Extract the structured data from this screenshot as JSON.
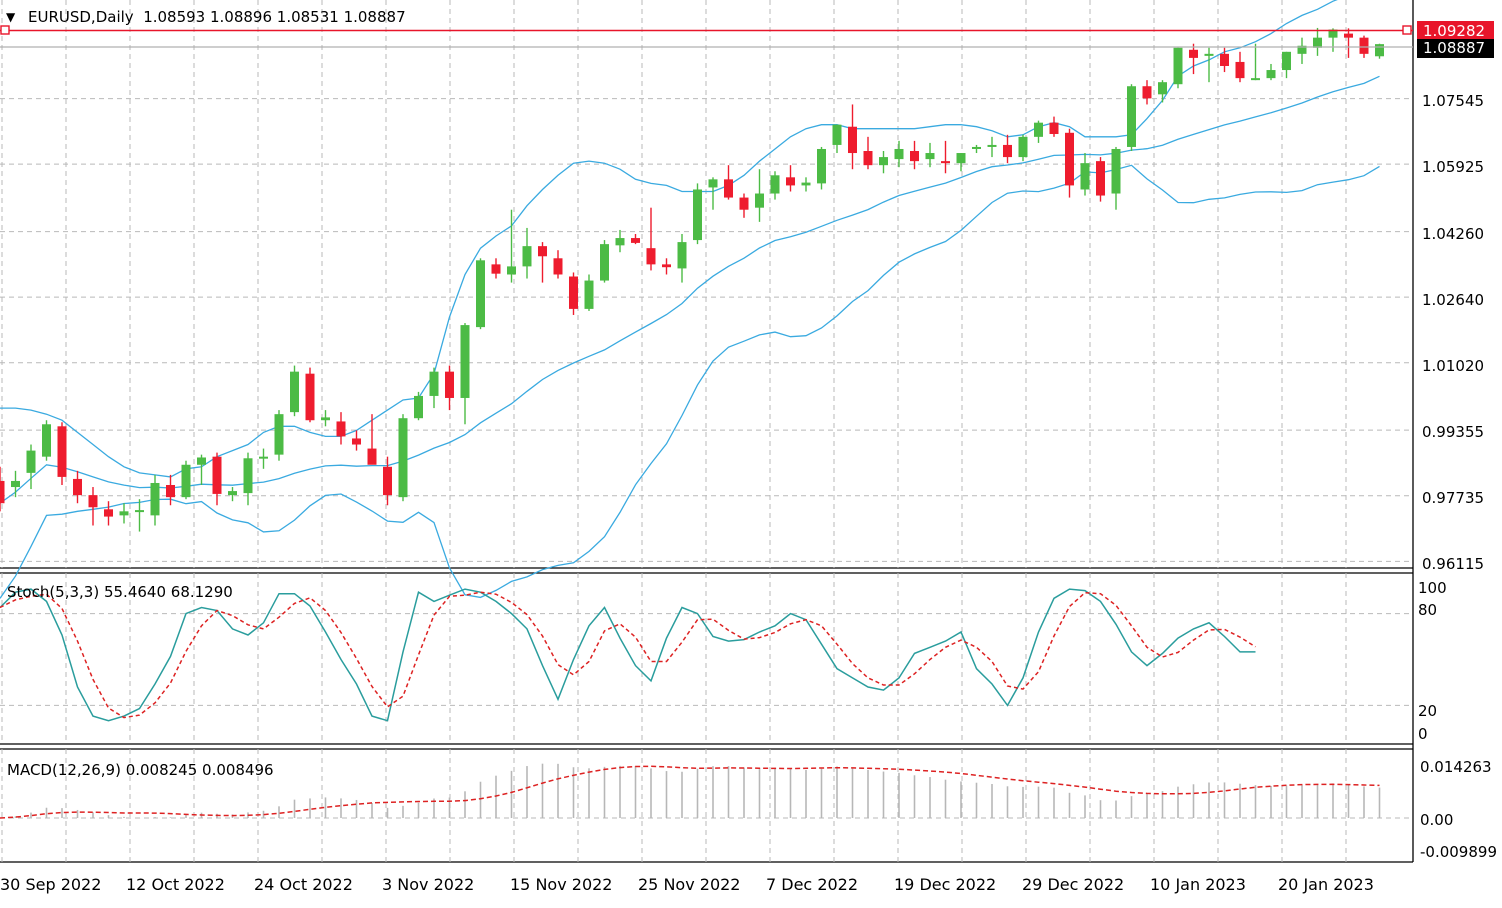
{
  "header": {
    "menu_glyph": "▼",
    "title": "EURUSD,Daily  1.08593 1.08896 1.08531 1.08887",
    "stoch_label": "Stoch(5,3,3) 55.4640 68.1290",
    "macd_label": "MACD(12,26,9) 0.008245 0.008496"
  },
  "price_axis": {
    "ticks": [
      "1.07545",
      "1.05925",
      "1.04260",
      "1.02640",
      "1.01020",
      "0.99355",
      "0.97735",
      "0.96115"
    ],
    "range": [
      0.9595,
      1.0998
    ],
    "alert_level": "1.09282",
    "current_price": "1.08887"
  },
  "stoch_axis": {
    "ticks": [
      "100",
      "80",
      "20",
      "0"
    ]
  },
  "macd_axis": {
    "ticks": [
      "0.014263",
      "0.00",
      "-0.009899"
    ]
  },
  "date_axis": {
    "labels": [
      "30 Sep 2022",
      "12 Oct 2022",
      "24 Oct 2022",
      "3 Nov 2022",
      "15 Nov 2022",
      "25 Nov 2022",
      "7 Dec 2022",
      "19 Dec 2022",
      "29 Dec 2022",
      "10 Jan 2023",
      "20 Jan 2023"
    ]
  },
  "colors": {
    "bull": "#4cbb45",
    "bear": "#ee1c2e",
    "bands": "#3aaae0",
    "stoch_main": "#2a9d9d",
    "stoch_signal": "#dd2222",
    "macd_hist": "#b7b7b7",
    "macd_signal": "#dd2222",
    "alert": "#e8152a",
    "grid": "#b9b9b9"
  },
  "chart_data": [
    {
      "type": "candlestick",
      "title": "EURUSD,Daily",
      "ohlc_fields": [
        "open",
        "high",
        "low",
        "close"
      ],
      "candles": [
        [
          0.981,
          0.9845,
          0.9735,
          0.9755
        ],
        [
          0.9795,
          0.9835,
          0.977,
          0.981
        ],
        [
          0.983,
          0.99,
          0.979,
          0.9885
        ],
        [
          0.987,
          0.996,
          0.986,
          0.995
        ],
        [
          0.9945,
          0.9955,
          0.98,
          0.982
        ],
        [
          0.9815,
          0.9835,
          0.9755,
          0.9775
        ],
        [
          0.9775,
          0.9795,
          0.97,
          0.9745
        ],
        [
          0.974,
          0.976,
          0.97,
          0.9722
        ],
        [
          0.9725,
          0.9755,
          0.9705,
          0.9735
        ],
        [
          0.9738,
          0.9765,
          0.9685,
          0.9738
        ],
        [
          0.9725,
          0.9825,
          0.97,
          0.9805
        ],
        [
          0.98,
          0.9825,
          0.975,
          0.977
        ],
        [
          0.977,
          0.986,
          0.9765,
          0.985
        ],
        [
          0.985,
          0.9875,
          0.98,
          0.9868
        ],
        [
          0.987,
          0.988,
          0.975,
          0.9778
        ],
        [
          0.9775,
          0.9795,
          0.976,
          0.9785
        ],
        [
          0.978,
          0.988,
          0.975,
          0.9866
        ],
        [
          0.9868,
          0.989,
          0.984,
          0.987
        ],
        [
          0.9875,
          0.9985,
          0.986,
          0.9975
        ],
        [
          0.998,
          1.0095,
          0.997,
          1.008
        ],
        [
          1.0075,
          1.009,
          0.9955,
          0.996
        ],
        [
          0.996,
          0.9985,
          0.9945,
          0.9967
        ],
        [
          0.9957,
          0.998,
          0.99,
          0.992
        ],
        [
          0.9915,
          0.9935,
          0.9885,
          0.99
        ],
        [
          0.989,
          0.9975,
          0.986,
          0.985
        ],
        [
          0.9845,
          0.987,
          0.975,
          0.9775
        ],
        [
          0.977,
          0.9975,
          0.976,
          0.9965
        ],
        [
          0.9965,
          1.003,
          0.996,
          1.002
        ],
        [
          1.002,
          1.009,
          0.999,
          1.008
        ],
        [
          1.008,
          1.0095,
          0.9985,
          1.0015
        ],
        [
          1.0015,
          1.02,
          0.995,
          1.0195
        ],
        [
          1.019,
          1.036,
          1.0185,
          1.0355
        ],
        [
          1.0345,
          1.036,
          1.031,
          1.0322
        ],
        [
          1.032,
          1.048,
          1.03,
          1.034
        ],
        [
          1.034,
          1.0435,
          1.031,
          1.039
        ],
        [
          1.039,
          1.04,
          1.03,
          1.0365
        ],
        [
          1.036,
          1.038,
          1.031,
          1.032
        ],
        [
          1.0315,
          1.0325,
          1.022,
          1.0235
        ],
        [
          1.0235,
          1.032,
          1.023,
          1.0305
        ],
        [
          1.0305,
          1.0405,
          1.03,
          1.0395
        ],
        [
          1.0392,
          1.043,
          1.0375,
          1.041
        ],
        [
          1.041,
          1.042,
          1.0395,
          1.0398
        ],
        [
          1.0385,
          1.0485,
          1.033,
          1.0345
        ],
        [
          1.0345,
          1.036,
          1.032,
          1.0338
        ],
        [
          1.0335,
          1.042,
          1.03,
          1.04
        ],
        [
          1.0405,
          1.0545,
          1.0395,
          1.053
        ],
        [
          1.0535,
          1.056,
          1.048,
          1.0555
        ],
        [
          1.0555,
          1.059,
          1.0505,
          1.051
        ],
        [
          1.051,
          1.052,
          1.046,
          1.048
        ],
        [
          1.0485,
          1.058,
          1.045,
          1.052
        ],
        [
          1.052,
          1.0575,
          1.0505,
          1.0565
        ],
        [
          1.056,
          1.059,
          1.0525,
          1.054
        ],
        [
          1.054,
          1.056,
          1.0525,
          1.0547
        ],
        [
          1.0545,
          1.0635,
          1.053,
          1.063
        ],
        [
          1.064,
          1.069,
          1.062,
          1.069
        ],
        [
          1.0685,
          1.074,
          1.058,
          1.062
        ],
        [
          1.0625,
          1.066,
          1.058,
          1.059
        ],
        [
          1.059,
          1.0625,
          1.057,
          1.061
        ],
        [
          1.0605,
          1.065,
          1.0585,
          1.063
        ],
        [
          1.0625,
          1.065,
          1.058,
          1.06
        ],
        [
          1.0605,
          1.0645,
          1.0585,
          1.062
        ],
        [
          1.06,
          1.065,
          1.057,
          1.0595
        ],
        [
          1.0595,
          1.062,
          1.0575,
          1.062
        ],
        [
          1.063,
          1.064,
          1.062,
          1.0635
        ],
        [
          1.0635,
          1.066,
          1.061,
          1.064
        ],
        [
          1.064,
          1.0665,
          1.0595,
          1.061
        ],
        [
          1.061,
          1.0665,
          1.06,
          1.066
        ],
        [
          1.066,
          1.07,
          1.0645,
          1.0695
        ],
        [
          1.0695,
          1.071,
          1.066,
          1.0667
        ],
        [
          1.067,
          1.068,
          1.051,
          1.054
        ],
        [
          1.053,
          1.062,
          1.0515,
          1.0595
        ],
        [
          1.06,
          1.061,
          1.05,
          1.0515
        ],
        [
          1.052,
          1.0635,
          1.048,
          1.063
        ],
        [
          1.0635,
          1.079,
          1.0625,
          1.0785
        ],
        [
          1.0785,
          1.08,
          1.074,
          1.0755
        ],
        [
          1.0765,
          1.08,
          1.0745,
          1.0795
        ],
        [
          1.079,
          1.088,
          1.078,
          1.088
        ],
        [
          1.0875,
          1.089,
          1.0815,
          1.0855
        ],
        [
          1.086,
          1.088,
          1.0795,
          1.0865
        ],
        [
          1.0865,
          1.088,
          1.082,
          1.0835
        ],
        [
          1.0845,
          1.087,
          1.0795,
          1.0805
        ],
        [
          1.0805,
          1.089,
          1.08,
          1.0805
        ],
        [
          1.0805,
          1.084,
          1.08,
          1.0825
        ],
        [
          1.0825,
          1.087,
          1.0805,
          1.087
        ],
        [
          1.0865,
          1.0905,
          1.084,
          1.0885
        ],
        [
          1.088,
          1.0929,
          1.086,
          1.0905
        ],
        [
          1.0905,
          1.0928,
          1.087,
          1.0925
        ],
        [
          1.0915,
          1.0928,
          1.0855,
          1.0905
        ],
        [
          1.0905,
          1.091,
          1.0855,
          1.0865
        ],
        [
          1.0859,
          1.089,
          1.0853,
          1.0889
        ]
      ],
      "bollinger_upper": [
        0.999,
        0.999,
        0.9985,
        0.9975,
        0.996,
        0.993,
        0.99,
        0.987,
        0.9845,
        0.983,
        0.9825,
        0.982,
        0.984,
        0.9845,
        0.987,
        0.9885,
        0.99,
        0.993,
        0.9945,
        0.9945,
        0.993,
        0.992,
        0.992,
        0.9935,
        0.996,
        0.9985,
        1.001,
        1.0015,
        1.0075,
        1.0215,
        1.032,
        1.0385,
        1.0415,
        1.044,
        1.049,
        1.053,
        1.0565,
        1.0595,
        1.06,
        1.0595,
        1.058,
        1.0555,
        1.0545,
        1.054,
        1.0525,
        1.0525,
        1.0525,
        1.054,
        1.0565,
        1.06,
        1.063,
        1.066,
        1.068,
        1.069,
        1.069,
        1.068,
        1.068,
        1.068,
        1.068,
        1.068,
        1.0685,
        1.069,
        1.069,
        1.0685,
        1.0675,
        1.066,
        1.0665,
        1.0685,
        1.0695,
        1.0685,
        1.066,
        1.066,
        1.066,
        1.0665,
        1.0705,
        1.075,
        1.081,
        1.0835,
        1.085,
        1.087,
        1.088,
        1.0895,
        1.0915,
        1.094,
        1.096,
        1.0975,
        1.0995,
        1.101,
        1.102,
        1.1032
      ]
    },
    {
      "type": "line",
      "title": "Stoch(5,3,3) 55.4640 68.1290",
      "ylim": [
        0,
        100
      ],
      "series": [
        {
          "name": "main",
          "values": [
            84,
            94,
            96,
            88,
            66,
            32,
            13,
            10,
            13,
            18,
            34,
            52,
            80,
            84,
            82,
            70,
            66,
            74,
            93,
            93,
            85,
            68,
            50,
            34,
            13,
            10,
            55,
            94,
            88,
            92,
            96,
            94,
            88,
            80,
            70,
            46,
            24,
            50,
            72,
            84,
            64,
            46,
            36,
            64,
            84,
            80,
            65,
            62,
            63,
            68,
            72,
            80,
            76,
            60,
            44,
            38,
            32,
            30,
            38,
            54,
            58,
            62,
            68,
            44,
            34,
            20,
            38,
            68,
            90,
            96,
            95,
            88,
            73,
            55,
            46,
            54,
            64,
            70,
            74,
            65,
            55,
            55
          ]
        }
      ]
    },
    {
      "type": "bar",
      "title": "MACD(12,26,9) 0.008245 0.008496",
      "ylim": [
        -0.009899,
        0.014263
      ]
    }
  ]
}
